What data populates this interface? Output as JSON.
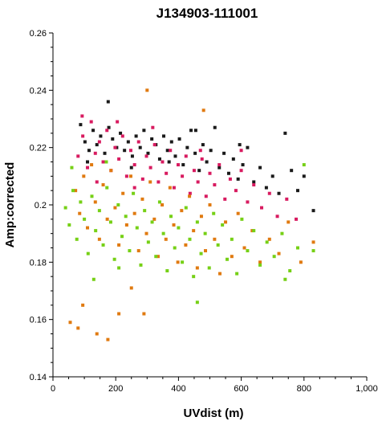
{
  "chart_data": {
    "type": "scatter",
    "title": "J134903-111001",
    "xlabel": "UVdist (m)",
    "ylabel": "Amp:corrected",
    "xlim": [
      0,
      1000
    ],
    "ylim": [
      0.14,
      0.26
    ],
    "x_ticks": [
      0,
      200,
      400,
      600,
      800,
      1000
    ],
    "x_tick_labels": [
      "0",
      "200",
      "400",
      "600",
      "800",
      "1,000"
    ],
    "y_ticks": [
      0.14,
      0.16,
      0.18,
      0.2,
      0.22,
      0.24,
      0.26
    ],
    "y_tick_labels": [
      "0.14",
      "0.16",
      "0.18",
      "0.2",
      "0.22",
      "0.24",
      "0.26"
    ],
    "grid": false,
    "series": [
      {
        "color": "#1a1a1a",
        "points": [
          [
            88,
            0.228
          ],
          [
            102,
            0.222
          ],
          [
            115,
            0.219
          ],
          [
            128,
            0.226
          ],
          [
            140,
            0.221
          ],
          [
            152,
            0.224
          ],
          [
            165,
            0.218
          ],
          [
            178,
            0.227
          ],
          [
            190,
            0.223
          ],
          [
            203,
            0.22
          ],
          [
            215,
            0.225
          ],
          [
            228,
            0.219
          ],
          [
            240,
            0.222
          ],
          [
            253,
            0.217
          ],
          [
            265,
            0.224
          ],
          [
            278,
            0.22
          ],
          [
            290,
            0.226
          ],
          [
            303,
            0.218
          ],
          [
            315,
            0.223
          ],
          [
            328,
            0.221
          ],
          [
            340,
            0.216
          ],
          [
            353,
            0.224
          ],
          [
            365,
            0.219
          ],
          [
            378,
            0.222
          ],
          [
            390,
            0.217
          ],
          [
            403,
            0.223
          ],
          [
            415,
            0.214
          ],
          [
            428,
            0.22
          ],
          [
            440,
            0.226
          ],
          [
            453,
            0.218
          ],
          [
            466,
            0.212
          ],
          [
            478,
            0.221
          ],
          [
            490,
            0.215
          ],
          [
            503,
            0.219
          ],
          [
            516,
            0.227
          ],
          [
            530,
            0.213
          ],
          [
            545,
            0.218
          ],
          [
            560,
            0.211
          ],
          [
            575,
            0.216
          ],
          [
            590,
            0.209
          ],
          [
            605,
            0.214
          ],
          [
            620,
            0.22
          ],
          [
            640,
            0.208
          ],
          [
            660,
            0.213
          ],
          [
            680,
            0.206
          ],
          [
            700,
            0.21
          ],
          [
            720,
            0.204
          ],
          [
            740,
            0.225
          ],
          [
            760,
            0.212
          ],
          [
            780,
            0.205
          ],
          [
            800,
            0.21
          ],
          [
            830,
            0.198
          ],
          [
            176,
            0.236
          ],
          [
            455,
            0.226
          ],
          [
            370,
            0.215
          ],
          [
            110,
            0.215
          ],
          [
            250,
            0.213
          ],
          [
            595,
            0.221
          ]
        ]
      },
      {
        "color": "#d81b60",
        "points": [
          [
            80,
            0.217
          ],
          [
            95,
            0.224
          ],
          [
            110,
            0.213
          ],
          [
            122,
            0.229
          ],
          [
            135,
            0.218
          ],
          [
            148,
            0.222
          ],
          [
            160,
            0.215
          ],
          [
            172,
            0.226
          ],
          [
            185,
            0.212
          ],
          [
            198,
            0.22
          ],
          [
            210,
            0.216
          ],
          [
            222,
            0.224
          ],
          [
            235,
            0.21
          ],
          [
            248,
            0.219
          ],
          [
            260,
            0.214
          ],
          [
            273,
            0.222
          ],
          [
            286,
            0.209
          ],
          [
            298,
            0.217
          ],
          [
            311,
            0.213
          ],
          [
            324,
            0.221
          ],
          [
            336,
            0.208
          ],
          [
            349,
            0.215
          ],
          [
            361,
            0.211
          ],
          [
            374,
            0.219
          ],
          [
            386,
            0.206
          ],
          [
            399,
            0.214
          ],
          [
            412,
            0.21
          ],
          [
            424,
            0.217
          ],
          [
            437,
            0.204
          ],
          [
            450,
            0.212
          ],
          [
            462,
            0.208
          ],
          [
            475,
            0.216
          ],
          [
            488,
            0.203
          ],
          [
            500,
            0.211
          ],
          [
            515,
            0.207
          ],
          [
            530,
            0.214
          ],
          [
            548,
            0.202
          ],
          [
            565,
            0.209
          ],
          [
            583,
            0.205
          ],
          [
            600,
            0.212
          ],
          [
            620,
            0.201
          ],
          [
            640,
            0.207
          ],
          [
            665,
            0.199
          ],
          [
            690,
            0.204
          ],
          [
            715,
            0.196
          ],
          [
            745,
            0.202
          ],
          [
            775,
            0.195
          ],
          [
            93,
            0.231
          ],
          [
            205,
            0.229
          ],
          [
            318,
            0.227
          ],
          [
            600,
            0.219
          ],
          [
            470,
            0.219
          ],
          [
            140,
            0.208
          ],
          [
            260,
            0.206
          ]
        ]
      },
      {
        "color": "#e07a10",
        "points": [
          [
            72,
            0.205
          ],
          [
            85,
            0.197
          ],
          [
            98,
            0.21
          ],
          [
            110,
            0.192
          ],
          [
            123,
            0.214
          ],
          [
            135,
            0.201
          ],
          [
            148,
            0.188
          ],
          [
            160,
            0.207
          ],
          [
            173,
            0.195
          ],
          [
            185,
            0.212
          ],
          [
            198,
            0.199
          ],
          [
            210,
            0.186
          ],
          [
            223,
            0.204
          ],
          [
            235,
            0.193
          ],
          [
            248,
            0.21
          ],
          [
            260,
            0.197
          ],
          [
            273,
            0.184
          ],
          [
            285,
            0.202
          ],
          [
            298,
            0.19
          ],
          [
            310,
            0.208
          ],
          [
            323,
            0.195
          ],
          [
            335,
            0.182
          ],
          [
            348,
            0.2
          ],
          [
            360,
            0.188
          ],
          [
            373,
            0.206
          ],
          [
            385,
            0.193
          ],
          [
            398,
            0.18
          ],
          [
            410,
            0.198
          ],
          [
            423,
            0.186
          ],
          [
            435,
            0.203
          ],
          [
            448,
            0.191
          ],
          [
            460,
            0.178
          ],
          [
            473,
            0.196
          ],
          [
            486,
            0.184
          ],
          [
            500,
            0.2
          ],
          [
            515,
            0.188
          ],
          [
            532,
            0.176
          ],
          [
            550,
            0.194
          ],
          [
            570,
            0.182
          ],
          [
            590,
            0.197
          ],
          [
            610,
            0.185
          ],
          [
            635,
            0.191
          ],
          [
            660,
            0.18
          ],
          [
            690,
            0.188
          ],
          [
            720,
            0.183
          ],
          [
            750,
            0.194
          ],
          [
            790,
            0.18
          ],
          [
            830,
            0.187
          ],
          [
            300,
            0.24
          ],
          [
            140,
            0.155
          ],
          [
            175,
            0.153
          ],
          [
            80,
            0.157
          ],
          [
            210,
            0.162
          ],
          [
            290,
            0.162
          ],
          [
            95,
            0.165
          ],
          [
            480,
            0.233
          ],
          [
            55,
            0.159
          ],
          [
            250,
            0.171
          ]
        ]
      },
      {
        "color": "#76d016",
        "points": [
          [
            40,
            0.199
          ],
          [
            52,
            0.193
          ],
          [
            64,
            0.205
          ],
          [
            76,
            0.188
          ],
          [
            88,
            0.201
          ],
          [
            100,
            0.195
          ],
          [
            112,
            0.183
          ],
          [
            124,
            0.203
          ],
          [
            136,
            0.191
          ],
          [
            148,
            0.198
          ],
          [
            160,
            0.186
          ],
          [
            172,
            0.206
          ],
          [
            184,
            0.194
          ],
          [
            196,
            0.181
          ],
          [
            208,
            0.2
          ],
          [
            220,
            0.189
          ],
          [
            232,
            0.196
          ],
          [
            244,
            0.184
          ],
          [
            256,
            0.204
          ],
          [
            268,
            0.192
          ],
          [
            280,
            0.179
          ],
          [
            292,
            0.198
          ],
          [
            304,
            0.187
          ],
          [
            316,
            0.194
          ],
          [
            328,
            0.182
          ],
          [
            340,
            0.201
          ],
          [
            352,
            0.19
          ],
          [
            364,
            0.177
          ],
          [
            376,
            0.196
          ],
          [
            388,
            0.185
          ],
          [
            400,
            0.192
          ],
          [
            412,
            0.18
          ],
          [
            424,
            0.199
          ],
          [
            436,
            0.188
          ],
          [
            448,
            0.175
          ],
          [
            460,
            0.194
          ],
          [
            472,
            0.183
          ],
          [
            485,
            0.19
          ],
          [
            498,
            0.178
          ],
          [
            512,
            0.197
          ],
          [
            526,
            0.186
          ],
          [
            540,
            0.193
          ],
          [
            555,
            0.181
          ],
          [
            570,
            0.188
          ],
          [
            586,
            0.176
          ],
          [
            602,
            0.195
          ],
          [
            620,
            0.184
          ],
          [
            640,
            0.191
          ],
          [
            660,
            0.179
          ],
          [
            682,
            0.187
          ],
          [
            705,
            0.182
          ],
          [
            730,
            0.19
          ],
          [
            755,
            0.177
          ],
          [
            780,
            0.185
          ],
          [
            800,
            0.214
          ],
          [
            830,
            0.184
          ],
          [
            740,
            0.174
          ],
          [
            460,
            0.166
          ],
          [
            210,
            0.178
          ],
          [
            130,
            0.174
          ],
          [
            60,
            0.213
          ],
          [
            170,
            0.215
          ]
        ]
      }
    ]
  }
}
